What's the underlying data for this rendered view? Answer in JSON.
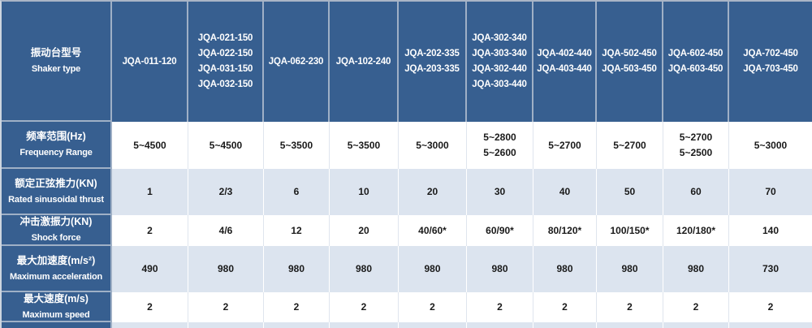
{
  "colors": {
    "header_bg": "#375f90",
    "alt_row_bg": "#dce4ef",
    "row_bg": "#ffffff",
    "grid_line": "#9fb0c6",
    "value_text": "#1a1a1a",
    "header_text": "#ffffff"
  },
  "table": {
    "corner": {
      "zh": "振动台型号",
      "en": "Shaker type"
    },
    "model_columns": [
      [
        "JQA-011-120"
      ],
      [
        "JQA-021-150",
        "JQA-022-150",
        "JQA-031-150",
        "JQA-032-150"
      ],
      [
        "JQA-062-230"
      ],
      [
        "JQA-102-240"
      ],
      [
        "JQA-202-335",
        "JQA-203-335"
      ],
      [
        "JQA-302-340",
        "JQA-303-340",
        "JQA-302-440",
        "JQA-303-440"
      ],
      [
        "JQA-402-440",
        "JQA-403-440"
      ],
      [
        "JQA-502-450",
        "JQA-503-450"
      ],
      [
        "JQA-602-450",
        "JQA-603-450"
      ],
      [
        "JQA-702-450",
        "JQA-703-450"
      ]
    ],
    "rows": [
      {
        "zh": "频率范围(Hz)",
        "en": "Frequency Range",
        "values": [
          [
            "5~4500"
          ],
          [
            "5~4500"
          ],
          [
            "5~3500"
          ],
          [
            "5~3500"
          ],
          [
            "5~3000"
          ],
          [
            "5~2800",
            "5~2600"
          ],
          [
            "5~2700"
          ],
          [
            "5~2700"
          ],
          [
            "5~2700",
            "5~2500"
          ],
          [
            "5~3000"
          ]
        ]
      },
      {
        "zh": "额定正弦推力(KN)",
        "en": "Rated sinusoidal thrust",
        "values": [
          [
            "1"
          ],
          [
            "2/3"
          ],
          [
            "6"
          ],
          [
            "10"
          ],
          [
            "20"
          ],
          [
            "30"
          ],
          [
            "40"
          ],
          [
            "50"
          ],
          [
            "60"
          ],
          [
            "70"
          ]
        ]
      },
      {
        "zh": "冲击激振力(KN)",
        "en": "Shock force",
        "values": [
          [
            "2"
          ],
          [
            "4/6"
          ],
          [
            "12"
          ],
          [
            "20"
          ],
          [
            "40/60*"
          ],
          [
            "60/90*"
          ],
          [
            "80/120*"
          ],
          [
            "100/150*"
          ],
          [
            "120/180*"
          ],
          [
            "140"
          ]
        ]
      },
      {
        "zh": "最大加速度(m/s²)",
        "en": "Maximum acceleration",
        "values": [
          [
            "490"
          ],
          [
            "980"
          ],
          [
            "980"
          ],
          [
            "980"
          ],
          [
            "980"
          ],
          [
            "980"
          ],
          [
            "980"
          ],
          [
            "980"
          ],
          [
            "980"
          ],
          [
            "730"
          ]
        ]
      },
      {
        "zh": "最大速度(m/s)",
        "en": "Maximum speed",
        "values": [
          [
            "2"
          ],
          [
            "2"
          ],
          [
            "2"
          ],
          [
            "2"
          ],
          [
            "2"
          ],
          [
            "2"
          ],
          [
            "2"
          ],
          [
            "2"
          ],
          [
            "2"
          ],
          [
            "2"
          ]
        ]
      }
    ]
  }
}
